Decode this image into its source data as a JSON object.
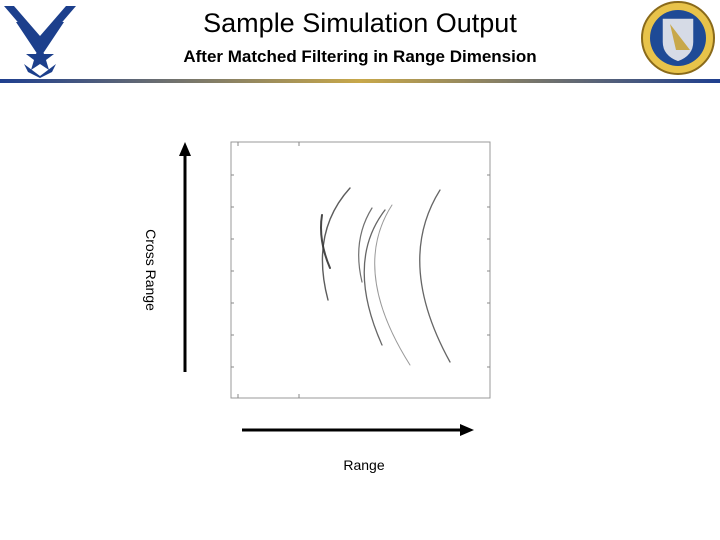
{
  "header": {
    "title": "Sample Simulation Output",
    "subtitle": "After Matched Filtering in Range Dimension"
  },
  "figure": {
    "y_axis_label": "Cross Range",
    "x_axis_label": "Range"
  }
}
